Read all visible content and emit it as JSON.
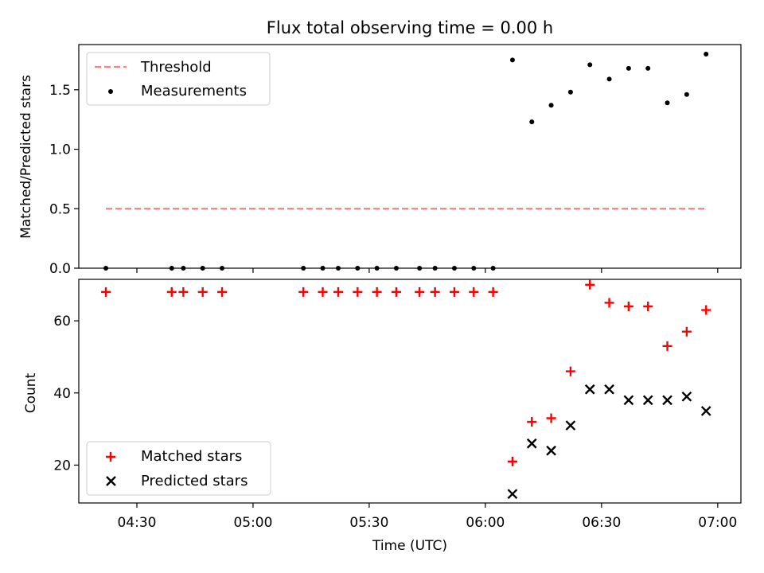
{
  "chart_data": [
    {
      "type": "scatter",
      "title": "Flux total observing time = 0.00 h",
      "ylabel": "Matched/Predicted stars",
      "ylim": [
        0,
        1.88
      ],
      "yticks": [
        "0.0",
        "0.5",
        "1.0",
        "1.5"
      ],
      "legend": {
        "placement": "top-left",
        "entries": [
          "Threshold",
          "Measurements"
        ]
      },
      "threshold": {
        "name": "Threshold",
        "value": 0.5,
        "x_start": "04:22",
        "x_end": "06:57",
        "color": "#ff7f7f",
        "style": "dashed"
      },
      "series": [
        {
          "name": "Measurements",
          "marker": "dot",
          "color": "#000000",
          "x": [
            "04:22",
            "04:39",
            "04:42",
            "04:47",
            "04:52",
            "05:13",
            "05:18",
            "05:22",
            "05:27",
            "05:32",
            "05:37",
            "05:43",
            "05:47",
            "05:52",
            "05:57",
            "06:02",
            "06:07",
            "06:12",
            "06:17",
            "06:22",
            "06:27",
            "06:32",
            "06:37",
            "06:42",
            "06:47",
            "06:52",
            "06:57"
          ],
          "y": [
            0,
            0,
            0,
            0,
            0,
            0,
            0,
            0,
            0,
            0,
            0,
            0,
            0,
            0,
            0,
            0,
            1.75,
            1.23,
            1.37,
            1.48,
            1.71,
            1.59,
            1.68,
            1.68,
            1.39,
            1.46,
            1.8
          ]
        }
      ]
    },
    {
      "type": "scatter",
      "xlabel": "Time (UTC)",
      "ylabel": "Count",
      "xlim": [
        "04:15",
        "07:06"
      ],
      "xticks": [
        "04:30",
        "05:00",
        "05:30",
        "06:00",
        "06:30",
        "07:00"
      ],
      "ylim": [
        9.5,
        71.5
      ],
      "yticks": [
        "20",
        "40",
        "60"
      ],
      "legend": {
        "placement": "bottom-left",
        "entries": [
          "Matched stars",
          "Predicted stars"
        ]
      },
      "series": [
        {
          "name": "Matched stars",
          "marker": "plus",
          "color": "#ff0000",
          "x": [
            "04:22",
            "04:39",
            "04:42",
            "04:47",
            "04:52",
            "05:13",
            "05:18",
            "05:22",
            "05:27",
            "05:32",
            "05:37",
            "05:43",
            "05:47",
            "05:52",
            "05:57",
            "06:02",
            "06:07",
            "06:12",
            "06:17",
            "06:22",
            "06:27",
            "06:32",
            "06:37",
            "06:42",
            "06:47",
            "06:52",
            "06:57"
          ],
          "y": [
            68,
            68,
            68,
            68,
            68,
            68,
            68,
            68,
            68,
            68,
            68,
            68,
            68,
            68,
            68,
            68,
            21,
            32,
            33,
            46,
            70,
            65,
            64,
            64,
            53,
            57,
            63
          ]
        },
        {
          "name": "Predicted stars",
          "marker": "x",
          "color": "#000000",
          "x": [
            "06:07",
            "06:12",
            "06:17",
            "06:22",
            "06:27",
            "06:32",
            "06:37",
            "06:42",
            "06:47",
            "06:52",
            "06:57"
          ],
          "y": [
            12,
            26,
            24,
            31,
            41,
            41,
            38,
            38,
            38,
            39,
            35
          ]
        }
      ]
    }
  ]
}
